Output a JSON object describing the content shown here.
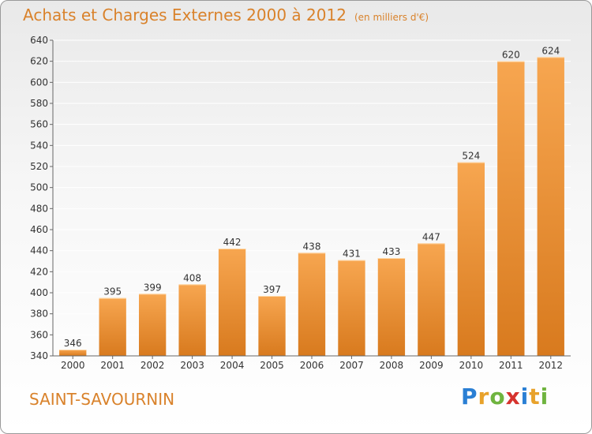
{
  "title": "Achats et Charges Externes 2000 à 2012",
  "unit": "(en milliers d'€)",
  "commune": "SAINT-SAVOURNIN",
  "logo": {
    "text": "Proxiti",
    "letter_colors": [
      "#2a7fd4",
      "#e8a22b",
      "#6fb43f",
      "#d6332e",
      "#2a7fd4",
      "#e8a22b",
      "#6fb43f"
    ]
  },
  "colors": {
    "bar_light": "#f7a650",
    "bar_dark": "#d87a1e",
    "title": "#d9822b",
    "grid": "#ffffff",
    "axis": "#666666"
  },
  "chart_data": {
    "type": "bar",
    "categories": [
      "2000",
      "2001",
      "2002",
      "2003",
      "2004",
      "2005",
      "2006",
      "2007",
      "2008",
      "2009",
      "2010",
      "2011",
      "2012"
    ],
    "values": [
      346,
      395,
      399,
      408,
      442,
      397,
      438,
      431,
      433,
      447,
      524,
      620,
      624
    ],
    "ylim": [
      340,
      640
    ],
    "yticks": [
      340,
      360,
      380,
      400,
      420,
      440,
      460,
      480,
      500,
      520,
      540,
      560,
      580,
      600,
      620,
      640
    ],
    "grid": true,
    "data_labels": true
  }
}
